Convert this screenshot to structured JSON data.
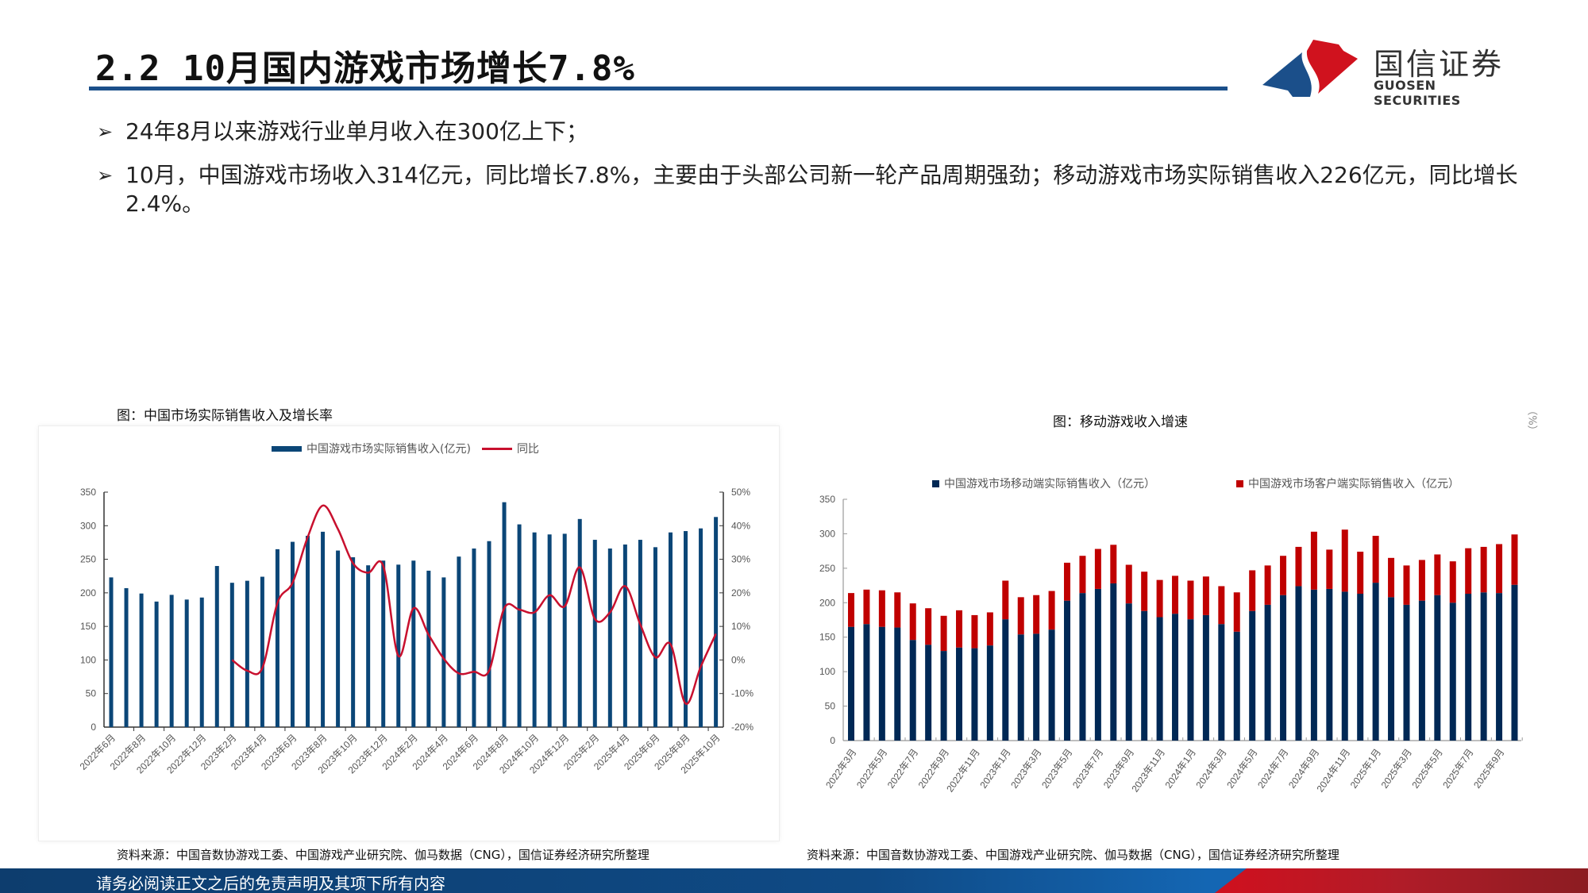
{
  "header": {
    "title": "2.2 10月国内游戏市场增长7.8%"
  },
  "logo": {
    "cn": "国信证券",
    "en": "GUOSEN SECURITIES",
    "colors": {
      "blue": "#1b4f8a",
      "red": "#d0121e"
    }
  },
  "bullets": [
    {
      "icon": "arrow-bullet-icon",
      "text": "24年8月以来游戏行业单月收入在300亿上下；"
    },
    {
      "icon": "arrow-bullet-icon",
      "text": "10月，中国游戏市场收入314亿元，同比增长7.8%，主要由于头部公司新一轮产品周期强劲；移动游戏市场实际销售收入226亿元，同比增长2.4%。"
    }
  ],
  "chart_data": [
    {
      "type": "bar+line",
      "title": "图：中国市场实际销售收入及增长率",
      "x_tick_labels": [
        "2022年6月",
        "2022年8月",
        "2022年10月",
        "2022年12月",
        "2023年2月",
        "2023年4月",
        "2023年6月",
        "2023年8月",
        "2023年10月",
        "2023年12月",
        "2024年2月",
        "2024年4月",
        "2024年6月",
        "2024年8月",
        "2024年10月",
        "2024年12月",
        "2025年2月",
        "2025年4月",
        "2025年6月",
        "2025年8月",
        "2025年10月"
      ],
      "y_left": {
        "range": [
          0,
          350
        ],
        "ticks": [
          "0",
          "50",
          "100",
          "150",
          "200",
          "250",
          "300",
          "350"
        ]
      },
      "y_right": {
        "range": [
          -20,
          50
        ],
        "ticks": [
          "-20%",
          "-10%",
          "0%",
          "10%",
          "20%",
          "30%",
          "40%",
          "50%"
        ]
      },
      "legend_position": "top",
      "series": [
        {
          "name": "中国游戏市场实际销售收入(亿元)",
          "type": "bar",
          "color": "#0b4677",
          "axis": "left",
          "values": [
            223,
            207,
            199,
            187,
            197,
            190,
            193,
            240,
            215,
            218,
            224,
            265,
            276,
            285,
            291,
            263,
            253,
            241,
            248,
            242,
            248,
            233,
            223,
            254,
            266,
            277,
            335,
            302,
            290,
            287,
            288,
            310,
            279,
            266,
            272,
            279,
            268,
            290,
            292,
            296,
            313
          ]
        },
        {
          "name": "同比",
          "type": "line",
          "color": "#c8102e",
          "axis": "right",
          "values": [
            null,
            null,
            null,
            null,
            null,
            null,
            null,
            null,
            0,
            -3.2,
            -2.4,
            17,
            23,
            36.6,
            46,
            39,
            28.8,
            26,
            28,
            1.2,
            15.4,
            7.5,
            0.4,
            -4,
            -3.5,
            -3.2,
            15.4,
            15,
            14.2,
            19.3,
            16,
            27.6,
            12.2,
            14.2,
            22,
            10.6,
            0.8,
            4.7,
            -13,
            -2,
            7.8
          ]
        }
      ],
      "source": "资料来源：中国音数协游戏工委、中国游戏产业研究院、伽马数据（CNG），国信证券经济研究所整理"
    },
    {
      "type": "stacked-bar",
      "title": "图：移动游戏收入增速",
      "axis_note": "（%）",
      "x_tick_labels": [
        "2022年3月",
        "2022年5月",
        "2022年7月",
        "2022年9月",
        "2022年11月",
        "2023年1月",
        "2023年3月",
        "2023年5月",
        "2023年7月",
        "2023年9月",
        "2023年11月",
        "2024年1月",
        "2024年3月",
        "2024年5月",
        "2024年7月",
        "2024年9月",
        "2024年11月",
        "2025年1月",
        "2025年3月",
        "2025年5月",
        "2025年7月",
        "2025年9月"
      ],
      "y": {
        "range": [
          0,
          350
        ],
        "ticks": [
          "0",
          "50",
          "100",
          "150",
          "200",
          "250",
          "300",
          "350"
        ]
      },
      "legend_position": "top",
      "series": [
        {
          "name": "中国游戏市场移动端实际销售收入（亿元）",
          "color": "#002855",
          "values": [
            165,
            169,
            165,
            164,
            146,
            139,
            130,
            135,
            134,
            138,
            176,
            154,
            155,
            161,
            203,
            214,
            220,
            228,
            199,
            188,
            179,
            184,
            176,
            182,
            169,
            158,
            188,
            197,
            211,
            224,
            219,
            220,
            216,
            213,
            229,
            208,
            197,
            203,
            211,
            200,
            213,
            215,
            214,
            226
          ]
        },
        {
          "name": "中国游戏市场客户端实际销售收入（亿元）",
          "color": "#c00000",
          "values": [
            49,
            50,
            53,
            51,
            53,
            53,
            51,
            54,
            48,
            48,
            56,
            54,
            56,
            56,
            55,
            54,
            58,
            56,
            56,
            57,
            54,
            55,
            56,
            56,
            55,
            57,
            59,
            57,
            57,
            57,
            84,
            57,
            90,
            61,
            68,
            57,
            57,
            59,
            59,
            60,
            66,
            66,
            71,
            73
          ]
        }
      ],
      "source": "资料来源：中国音数协游戏工委、中国游戏产业研究院、伽马数据（CNG），国信证券经济研究所整理"
    }
  ],
  "footer": {
    "text": "请务必阅读正文之后的免责声明及其项下所有内容"
  }
}
